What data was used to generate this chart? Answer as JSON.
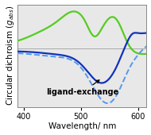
{
  "xlabel": "Wavelength/ nm",
  "ylabel": "Circular dichroism $(g_{abs})$",
  "xlim": [
    390,
    615
  ],
  "ylim": [
    -0.95,
    0.72
  ],
  "fig_facecolor": "#ffffff",
  "ax_facecolor": "#e8e8e8",
  "green_color": "#55cc22",
  "blue_solid_color": "#1133bb",
  "blue_dashed_color": "#5599ee",
  "annotation_text": "ligand-exchange",
  "annotation_fontsize": 7,
  "annotation_fontweight": "bold",
  "tick_fontsize": 7,
  "label_fontsize": 7.5,
  "xticks": [
    400,
    500,
    600
  ],
  "zero_line_color": "#aaaaaa",
  "green_lw": 1.6,
  "blue_solid_lw": 1.6,
  "blue_dashed_lw": 1.4
}
